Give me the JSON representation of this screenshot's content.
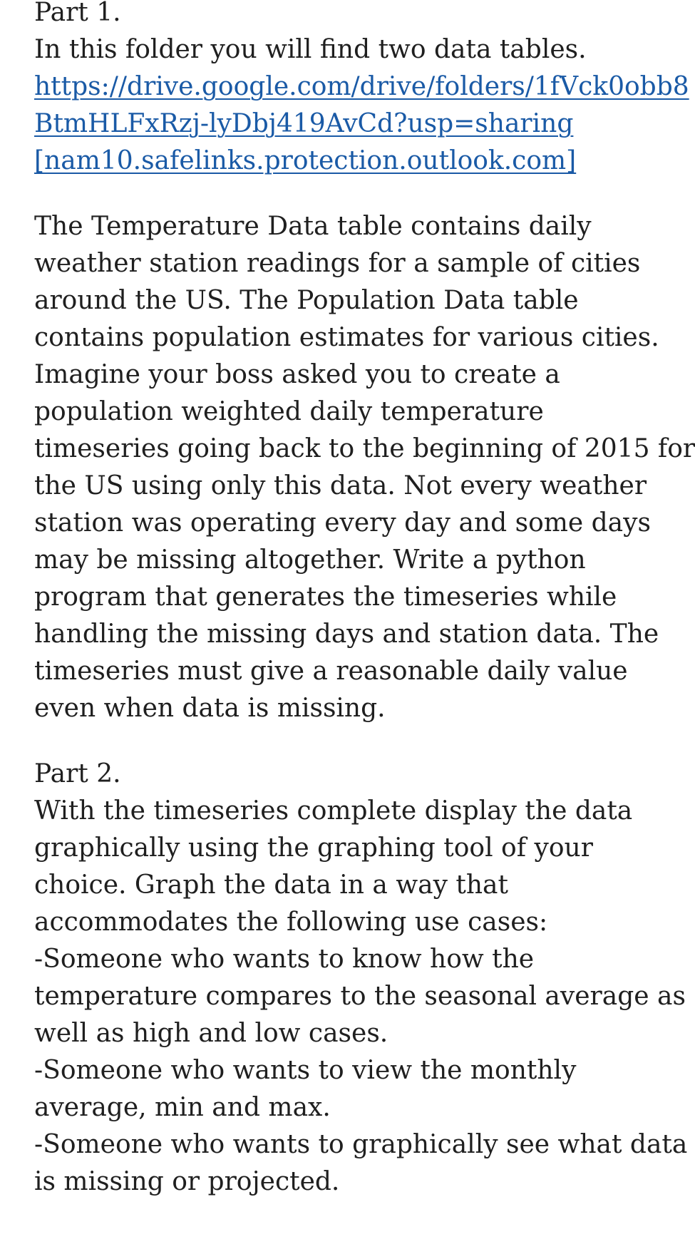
{
  "part1": {
    "title": "Part 1.",
    "intro": "In this folder you will find two data tables.",
    "link_lines": [
      "https://drive.google.com/drive/folders/1fVck0obb8",
      "BtmHLFxRzj-lyDbj419AvCd?usp=sharing"
    ],
    "safelink": "[nam10.safelinks.protection.outlook.com]",
    "paragraph_lines": [
      "The Temperature Data table contains daily",
      "weather station readings for a sample of cities",
      "around the US. The Population Data table",
      "contains population estimates for various cities.",
      "Imagine your boss asked you to create a",
      "population weighted daily temperature",
      "timeseries going back to the beginning of 2015 for",
      "the US using only this data. Not every weather",
      "station was operating every day and some days",
      "may be missing altogether. Write a python",
      "program that generates the timeseries while",
      "handling the missing days and station data. The",
      "timeseries must give a reasonable daily value",
      "even when data is missing."
    ]
  },
  "part2": {
    "title": "Part 2.",
    "paragraph_lines": [
      "With the timeseries complete display the data",
      "graphically using the graphing tool of your",
      "choice. Graph the data in a way that",
      "accommodates the following use cases:",
      "-Someone who wants to know how the",
      "temperature compares to the seasonal average as",
      "well as high and low cases.",
      "-Someone who wants to view the monthly",
      "average, min and max.",
      "-Someone who wants to graphically see what data",
      "is missing or projected."
    ]
  },
  "colors": {
    "text": "#1f1f1f",
    "link": "#1a5aa6",
    "background": "#ffffff"
  }
}
